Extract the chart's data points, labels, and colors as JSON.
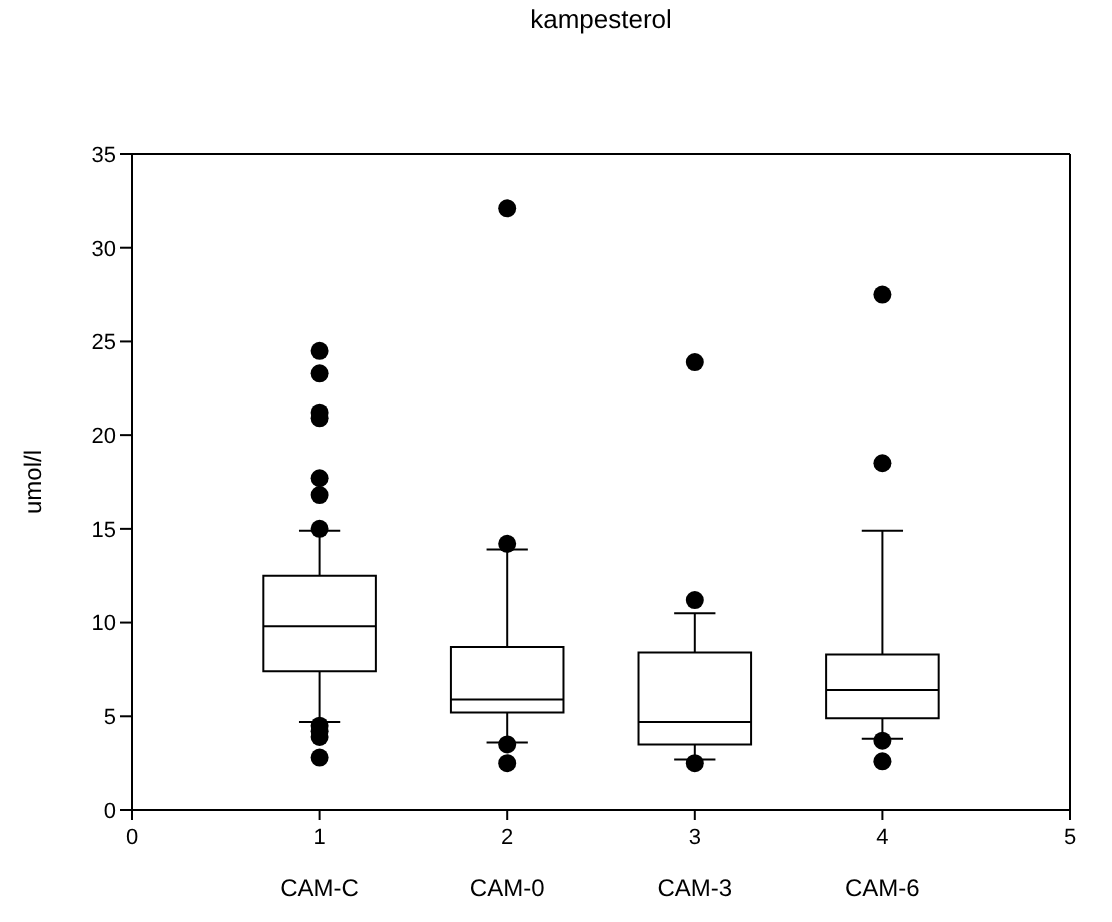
{
  "chart_data": {
    "type": "box",
    "title": "kampesterol",
    "ylabel": "umol/l",
    "color": "#000000",
    "x": [
      1,
      2,
      3,
      4
    ],
    "xlim": [
      0,
      5
    ],
    "xticks": [
      0,
      1,
      2,
      3,
      4,
      5
    ],
    "annotations": [
      "CAM-C",
      "CAM-0",
      "CAM-3",
      "CAM-6"
    ],
    "ylim": [
      0,
      35
    ],
    "yticks": [
      0,
      5,
      10,
      15,
      20,
      25,
      30,
      35
    ],
    "boxes": [
      {
        "low": 4.7,
        "q1": 7.4,
        "median": 9.8,
        "q3": 12.5,
        "high": 14.9,
        "outliers": [
          24.5,
          23.3,
          21.2,
          20.9,
          17.7,
          16.8,
          15.0,
          4.5,
          4.2,
          3.9,
          2.8
        ]
      },
      {
        "low": 3.6,
        "q1": 5.2,
        "median": 5.9,
        "q3": 8.7,
        "high": 13.9,
        "outliers": [
          32.1,
          14.2,
          3.5,
          2.5
        ]
      },
      {
        "low": 2.7,
        "q1": 3.5,
        "median": 4.7,
        "q3": 8.4,
        "high": 10.5,
        "outliers": [
          23.9,
          11.2,
          2.5
        ]
      },
      {
        "low": 3.8,
        "q1": 4.9,
        "median": 6.4,
        "q3": 8.3,
        "high": 14.9,
        "outliers": [
          27.5,
          18.5,
          3.7,
          2.6
        ]
      }
    ]
  }
}
